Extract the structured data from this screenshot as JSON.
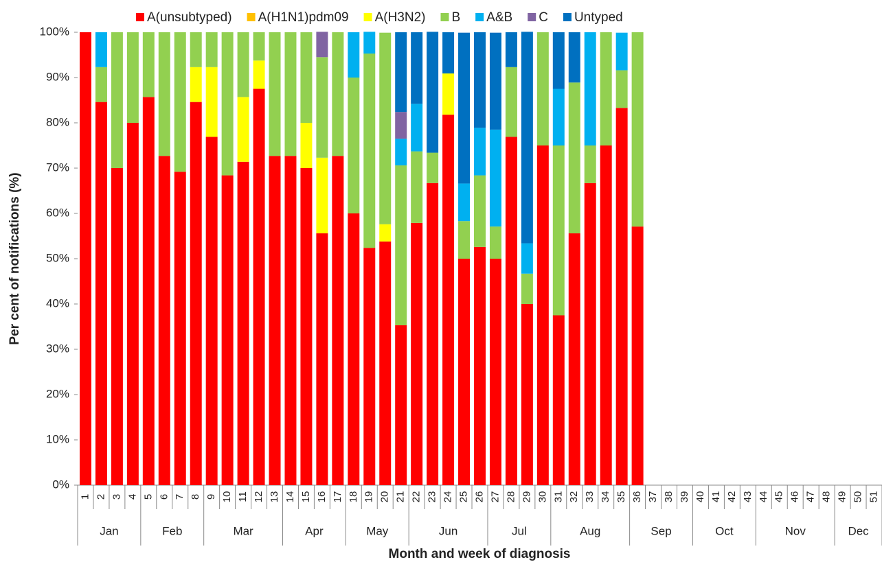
{
  "chart_data": {
    "type": "stacked_bar",
    "x_label": "Month and week of diagnosis",
    "y_label": "Per cent of notifications (%)",
    "ylim": [
      0,
      100
    ],
    "yticks": [
      {
        "value": 0,
        "label": "0%"
      },
      {
        "value": 10,
        "label": "10%"
      },
      {
        "value": 20,
        "label": "20%"
      },
      {
        "value": 30,
        "label": "30%"
      },
      {
        "value": 40,
        "label": "40%"
      },
      {
        "value": 50,
        "label": "50%"
      },
      {
        "value": 60,
        "label": "60%"
      },
      {
        "value": 70,
        "label": "70%"
      },
      {
        "value": 80,
        "label": "80%"
      },
      {
        "value": 90,
        "label": "90%"
      },
      {
        "value": 100,
        "label": "100%"
      }
    ],
    "categories": [
      "1",
      "2",
      "3",
      "4",
      "5",
      "6",
      "7",
      "8",
      "9",
      "10",
      "11",
      "12",
      "13",
      "14",
      "15",
      "16",
      "17",
      "18",
      "19",
      "20",
      "21",
      "22",
      "23",
      "24",
      "25",
      "26",
      "27",
      "28",
      "29",
      "30",
      "31",
      "32",
      "33",
      "34",
      "35",
      "36",
      "37",
      "38",
      "39",
      "40",
      "41",
      "42",
      "43",
      "44",
      "45",
      "46",
      "47",
      "48",
      "49",
      "50",
      "51"
    ],
    "months": [
      {
        "label": "Jan",
        "weeks": 4
      },
      {
        "label": "Feb",
        "weeks": 4
      },
      {
        "label": "Mar",
        "weeks": 5
      },
      {
        "label": "Apr",
        "weeks": 4
      },
      {
        "label": "May",
        "weeks": 4
      },
      {
        "label": "Jun",
        "weeks": 5
      },
      {
        "label": "Jul",
        "weeks": 4
      },
      {
        "label": "Aug",
        "weeks": 5
      },
      {
        "label": "Sep",
        "weeks": 4
      },
      {
        "label": "Oct",
        "weeks": 4
      },
      {
        "label": "Nov",
        "weeks": 5
      },
      {
        "label": "Dec",
        "weeks": 3
      }
    ],
    "series": [
      {
        "name": "A(unsubtyped)",
        "color": "#ff0000",
        "values": [
          100,
          84.6,
          70,
          80,
          85.7,
          72.7,
          69.2,
          84.6,
          76.9,
          68.4,
          71.4,
          87.5,
          72.7,
          72.7,
          70,
          55.6,
          72.7,
          60,
          52.4,
          53.8,
          35.3,
          57.9,
          66.7,
          81.8,
          50,
          52.6,
          50,
          76.9,
          40,
          75,
          37.5,
          55.6,
          66.7,
          75,
          83.3,
          57.1,
          null,
          null,
          null,
          null,
          null,
          null,
          null,
          null,
          null,
          null,
          null,
          null,
          null,
          null,
          null
        ]
      },
      {
        "name": "A(H1N1)pdm09",
        "color": "#ffc000",
        "values": [
          0,
          0,
          0,
          0,
          0,
          0,
          0,
          0,
          0,
          0,
          0,
          0,
          0,
          0,
          0,
          0,
          0,
          0,
          0,
          0,
          0,
          0,
          0,
          0,
          0,
          0,
          0,
          0,
          0,
          0,
          0,
          0,
          0,
          0,
          0,
          0,
          null,
          null,
          null,
          null,
          null,
          null,
          null,
          null,
          null,
          null,
          null,
          null,
          null,
          null,
          null
        ]
      },
      {
        "name": "A(H3N2)",
        "color": "#ffff00",
        "values": [
          0,
          0,
          0,
          0,
          0,
          0,
          0,
          7.7,
          15.4,
          0,
          14.3,
          6.25,
          0,
          0,
          10,
          16.7,
          0,
          0,
          0,
          3.8,
          0,
          0,
          0,
          9.1,
          0,
          0,
          0,
          0,
          0,
          0,
          0,
          0,
          0,
          0,
          0,
          0,
          null,
          null,
          null,
          null,
          null,
          null,
          null,
          null,
          null,
          null,
          null,
          null,
          null,
          null,
          null
        ]
      },
      {
        "name": "B",
        "color": "#92d050",
        "values": [
          0,
          7.7,
          30,
          20,
          14.3,
          27.3,
          30.8,
          7.7,
          7.7,
          31.6,
          14.3,
          6.25,
          27.3,
          27.3,
          20,
          22.2,
          27.3,
          30,
          42.9,
          42.3,
          35.3,
          15.8,
          6.7,
          0,
          8.3,
          15.8,
          7.1,
          15.4,
          6.7,
          25,
          37.5,
          33.3,
          8.3,
          25,
          8.3,
          42.9,
          null,
          null,
          null,
          null,
          null,
          null,
          null,
          null,
          null,
          null,
          null,
          null,
          null,
          null,
          null
        ]
      },
      {
        "name": "A&B",
        "color": "#00b0f0",
        "values": [
          0,
          7.7,
          0,
          0,
          0,
          0,
          0,
          0,
          0,
          0,
          0,
          0,
          0,
          0,
          0,
          0,
          0,
          10,
          4.8,
          0,
          5.9,
          10.5,
          0,
          0,
          8.3,
          10.5,
          21.4,
          0,
          6.7,
          0,
          12.5,
          0,
          25,
          0,
          8.3,
          0,
          null,
          null,
          null,
          null,
          null,
          null,
          null,
          null,
          null,
          null,
          null,
          null,
          null,
          null,
          null
        ]
      },
      {
        "name": "C",
        "color": "#8064a2",
        "values": [
          0,
          0,
          0,
          0,
          0,
          0,
          0,
          0,
          0,
          0,
          0,
          0,
          0,
          0,
          0,
          5.6,
          0,
          0,
          0,
          0,
          5.9,
          0,
          0,
          0,
          0,
          0,
          0,
          0,
          0,
          0,
          0,
          0,
          0,
          0,
          0,
          0,
          null,
          null,
          null,
          null,
          null,
          null,
          null,
          null,
          null,
          null,
          null,
          null,
          null,
          null,
          null
        ]
      },
      {
        "name": "Untyped",
        "color": "#0070c0",
        "values": [
          0,
          0,
          0,
          0,
          0,
          0,
          0,
          0,
          0,
          0,
          0,
          0,
          0,
          0,
          0,
          0,
          0,
          0,
          0,
          0,
          17.6,
          15.8,
          26.7,
          9.1,
          33.3,
          21.1,
          21.4,
          7.7,
          46.7,
          0,
          12.5,
          11.1,
          0,
          0,
          0,
          0,
          null,
          null,
          null,
          null,
          null,
          null,
          null,
          null,
          null,
          null,
          null,
          null,
          null,
          null,
          null
        ]
      }
    ]
  }
}
